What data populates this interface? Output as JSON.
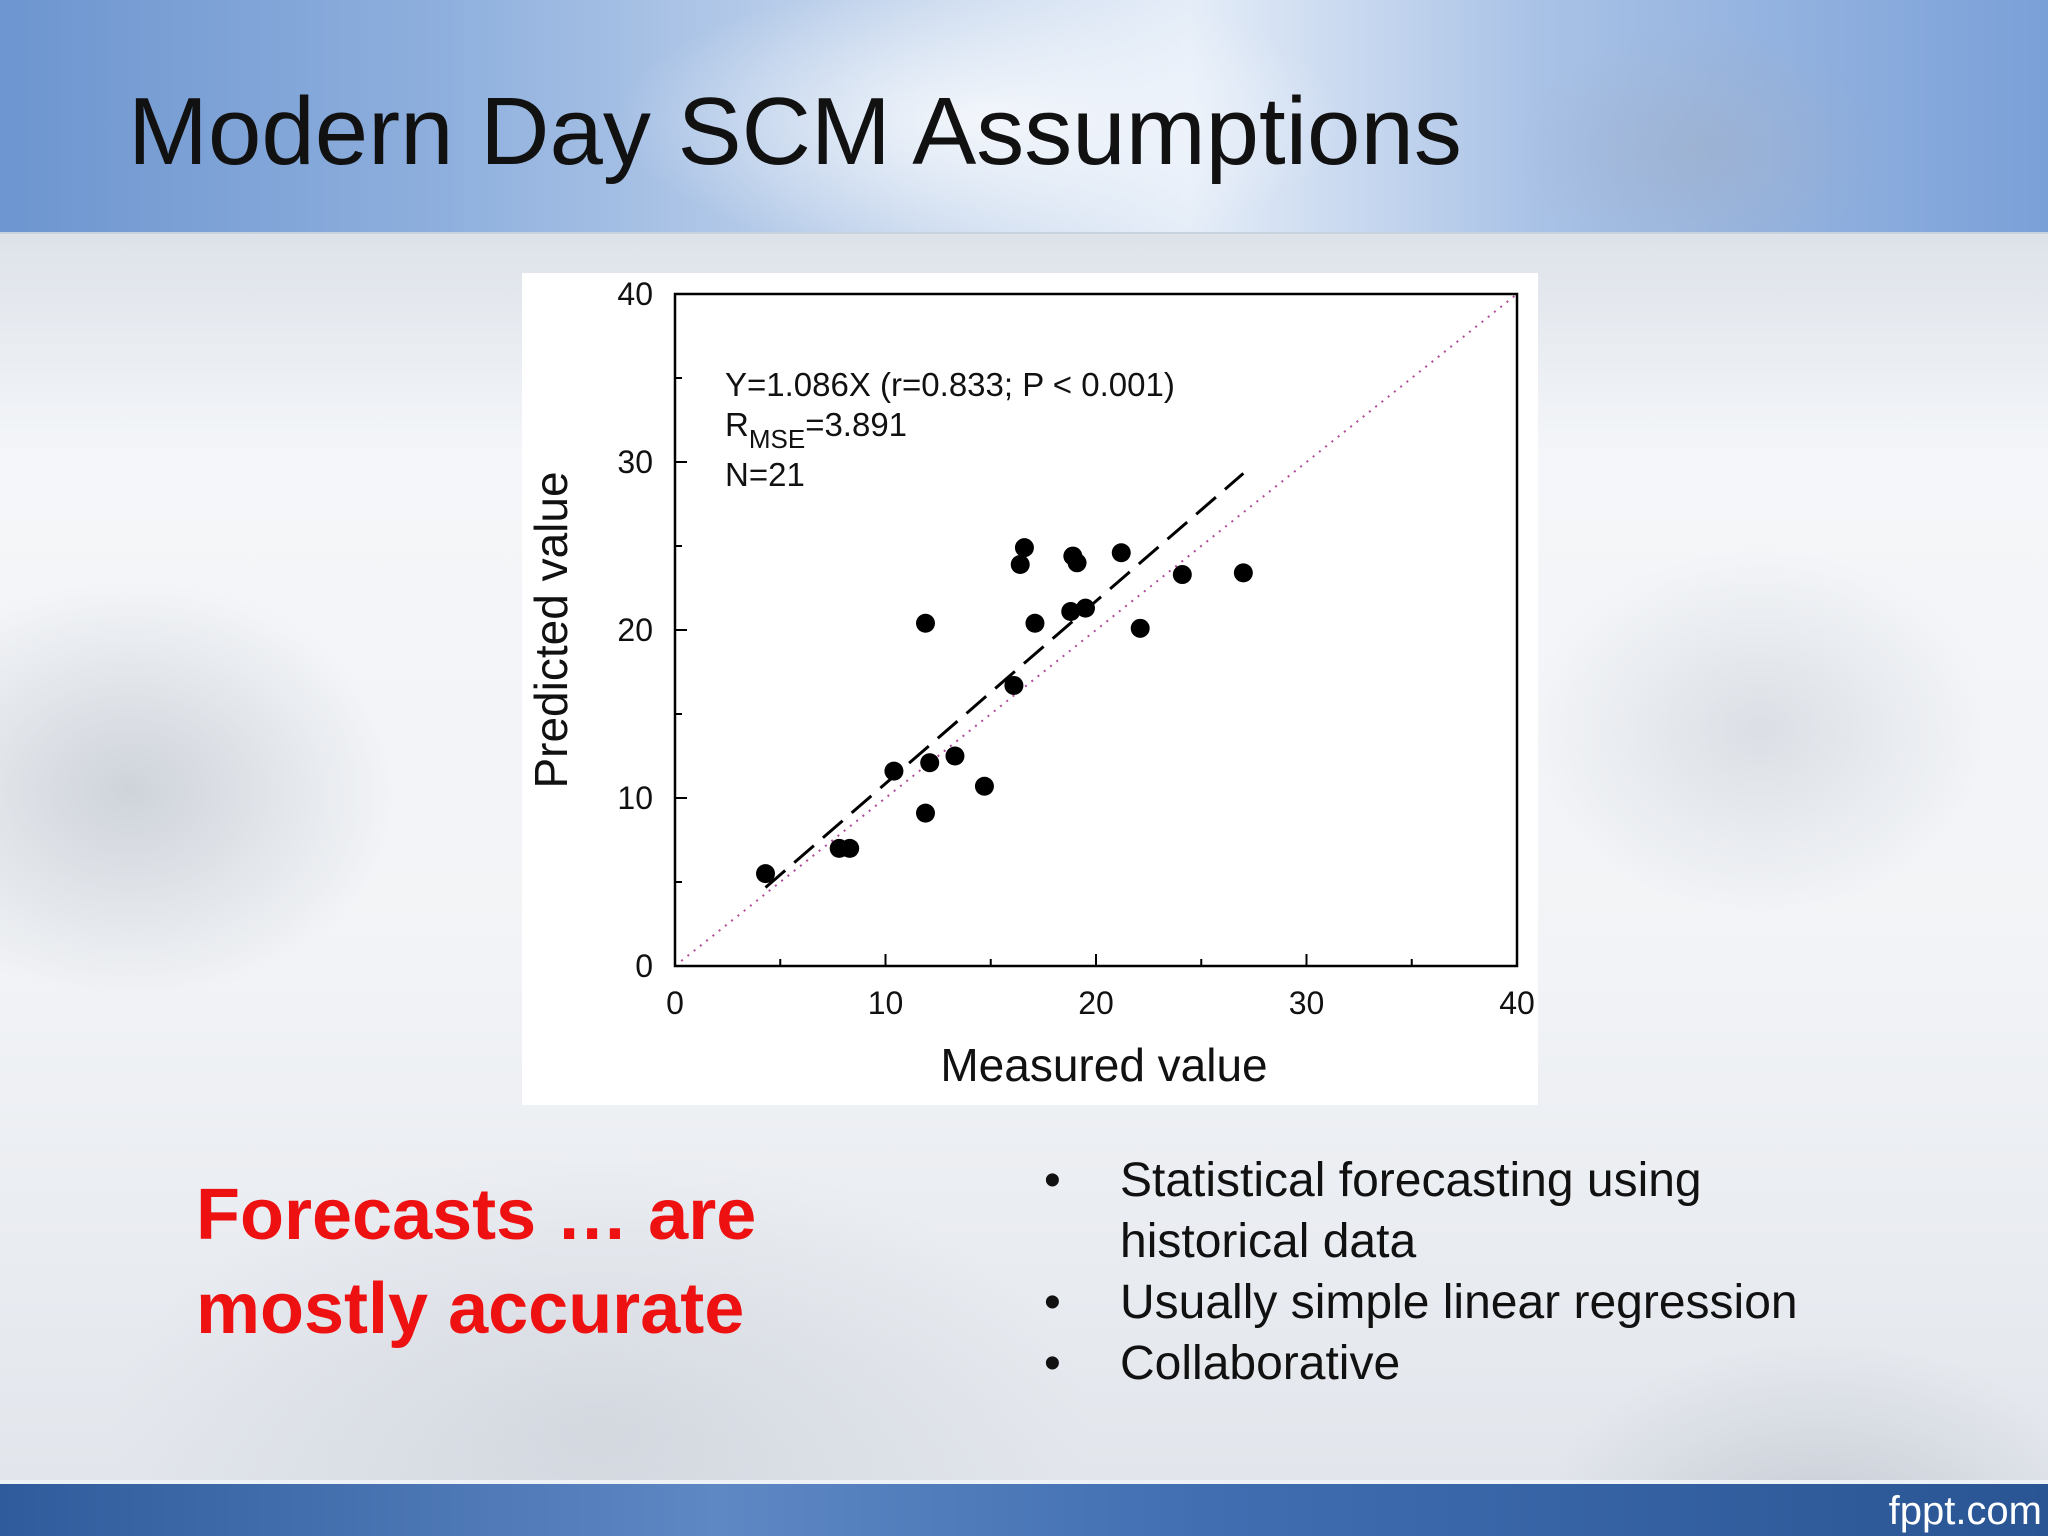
{
  "slide": {
    "title": "Modern Day SCM Assumptions",
    "callout": "Forecasts … are mostly accurate",
    "bullet_marker": "•",
    "bullets": [
      "Statistical forecasting using historical data",
      "Usually simple linear regression",
      "Collaborative"
    ],
    "watermark": "fppt.com"
  },
  "chart_data": {
    "type": "scatter",
    "title": "",
    "xlabel": "Measured value",
    "ylabel": "Predicted value",
    "xlim": [
      0,
      40
    ],
    "ylim": [
      0,
      40
    ],
    "x_ticks": [
      0,
      10,
      20,
      30,
      40
    ],
    "y_ticks": [
      0,
      10,
      20,
      30,
      40
    ],
    "grid": false,
    "annotations": {
      "equation": "Y=1.086X (r=0.833; P < 0.001)",
      "rmse_main": "R",
      "rmse_sub": "MSE",
      "rmse_value": "=3.891",
      "n": "N=21"
    },
    "series": [
      {
        "points": [
          [
            4.3,
            5.5
          ],
          [
            7.8,
            7.0
          ],
          [
            8.3,
            7.0
          ],
          [
            11.9,
            9.1
          ],
          [
            10.4,
            11.6
          ],
          [
            12.1,
            12.1
          ],
          [
            13.3,
            12.5
          ],
          [
            14.7,
            10.7
          ],
          [
            11.9,
            20.4
          ],
          [
            16.1,
            16.7
          ],
          [
            16.4,
            23.9
          ],
          [
            16.6,
            24.9
          ],
          [
            17.1,
            20.4
          ],
          [
            18.8,
            21.1
          ],
          [
            18.9,
            24.4
          ],
          [
            19.1,
            24.0
          ],
          [
            19.5,
            21.3
          ],
          [
            21.2,
            24.6
          ],
          [
            22.1,
            20.1
          ],
          [
            24.1,
            23.3
          ],
          [
            27.0,
            23.4
          ]
        ]
      }
    ],
    "fit_line": {
      "label": "regression",
      "slope": 1.086,
      "x_range": [
        4.3,
        27.0
      ],
      "style": "dashed",
      "color": "#000000"
    },
    "reference_line": {
      "label": "1:1",
      "slope": 1.0,
      "x_range": [
        0,
        40
      ],
      "style": "dotted",
      "color": "#b04a9a"
    },
    "legend": "none",
    "marker_color": "#000000"
  }
}
